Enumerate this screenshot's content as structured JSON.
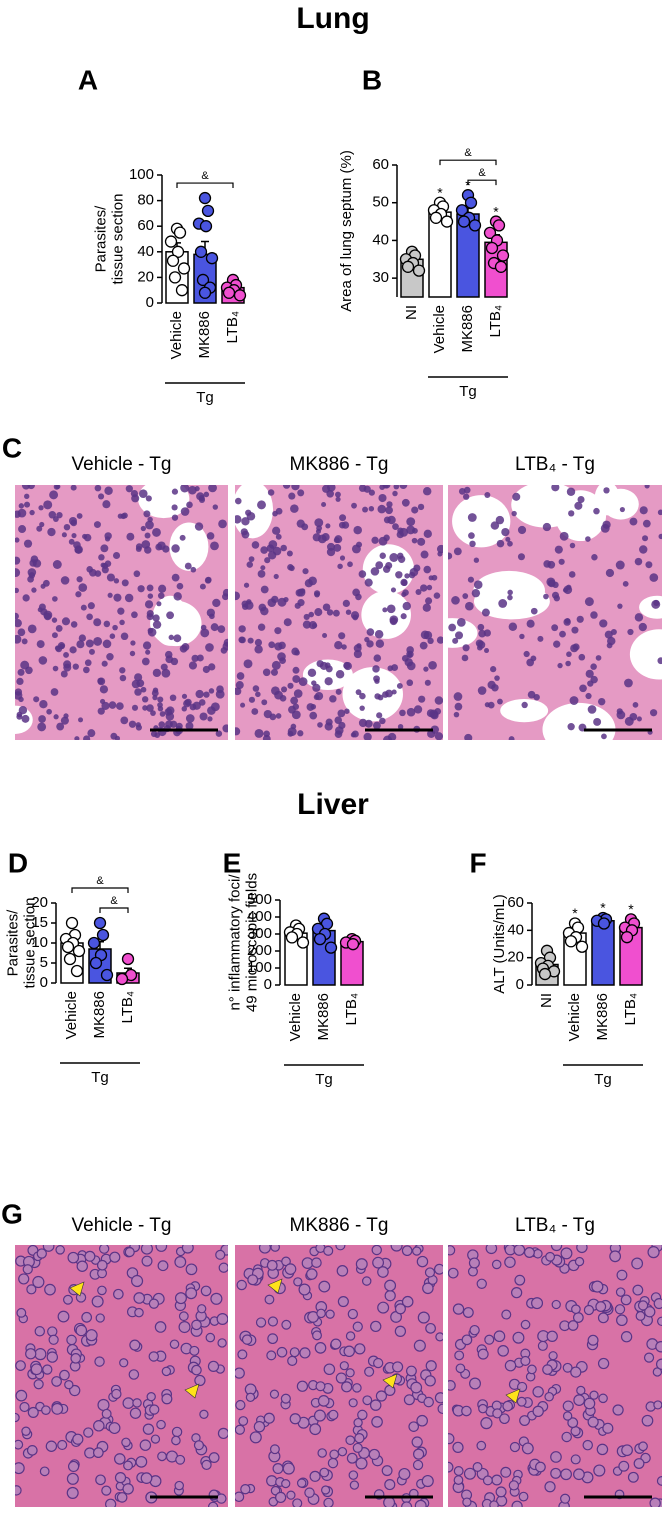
{
  "sections": [
    "Lung",
    "Liver"
  ],
  "chart_data": [
    {
      "panel": "A",
      "type": "bar",
      "ylabel": [
        "Parasites/",
        "tissue section"
      ],
      "categories": [
        "Vehicle",
        "MK886",
        "LTB₄"
      ],
      "group_label": "Tg",
      "colors": [
        "#ffffff",
        "#4a55e0",
        "#f04fcf"
      ],
      "values": [
        40,
        38,
        12
      ],
      "errors": [
        7,
        10,
        2.5
      ],
      "points": [
        [
          58,
          55,
          48,
          40,
          33,
          27,
          20,
          10
        ],
        [
          82,
          72,
          62,
          60,
          40,
          35,
          18,
          12,
          8
        ],
        [
          18,
          14,
          12,
          10,
          8,
          6
        ]
      ],
      "brackets": [
        {
          "label": "&",
          "between": [
            "Vehicle",
            "LTB₄"
          ]
        }
      ],
      "ylim": [
        0,
        100
      ],
      "yticks": [
        0,
        20,
        40,
        60,
        80,
        100
      ]
    },
    {
      "panel": "B",
      "type": "bar",
      "ylabel": [
        "Area of lung septum (%)"
      ],
      "categories": [
        "NI",
        "Vehicle",
        "MK886",
        "LTB₄"
      ],
      "group_label": "Tg",
      "colors": [
        "#c8c8c8",
        "#ffffff",
        "#4a55e0",
        "#f04fcf"
      ],
      "values": [
        35,
        47.5,
        47,
        39.5
      ],
      "errors": [
        1,
        1,
        1.5,
        2
      ],
      "points": [
        [
          37,
          36,
          35,
          34,
          33,
          32
        ],
        [
          50,
          49,
          48,
          47,
          46,
          45
        ],
        [
          52,
          50,
          48,
          46,
          45,
          44
        ],
        [
          45,
          44,
          42,
          40,
          38,
          36,
          34,
          33
        ]
      ],
      "marks": [
        null,
        "*",
        "*",
        "*"
      ],
      "brackets": [
        {
          "label": "&",
          "between": [
            "Vehicle",
            "LTB₄"
          ]
        },
        {
          "label": "&",
          "between": [
            "MK886",
            "LTB₄"
          ]
        }
      ],
      "ylim": [
        25,
        60
      ],
      "yticks": [
        30,
        40,
        50,
        60
      ]
    },
    {
      "panel": "D",
      "type": "bar",
      "ylabel": [
        "Parasites/",
        "tissue section"
      ],
      "categories": [
        "Vehicle",
        "MK886",
        "LTB₄"
      ],
      "group_label": "Tg",
      "colors": [
        "#ffffff",
        "#4a55e0",
        "#f04fcf"
      ],
      "values": [
        10,
        8.5,
        2.5
      ],
      "errors": [
        1.2,
        1.8,
        1.2
      ],
      "points": [
        [
          15,
          12,
          11,
          10,
          9,
          8,
          6,
          3
        ],
        [
          15,
          12,
          10,
          7,
          5,
          2
        ],
        [
          6,
          2,
          1
        ]
      ],
      "brackets": [
        {
          "label": "&",
          "between": [
            "Vehicle",
            "LTB₄"
          ]
        },
        {
          "label": "&",
          "between": [
            "MK886",
            "LTB₄"
          ]
        }
      ],
      "ylim": [
        0,
        20
      ],
      "yticks": [
        0,
        5,
        10,
        15,
        20
      ]
    },
    {
      "panel": "E",
      "type": "bar",
      "ylabel": [
        "n° inflammatory foci/",
        "49 microscopic fields"
      ],
      "categories": [
        "Vehicle",
        "MK886",
        "LTB₄"
      ],
      "group_label": "Tg",
      "colors": [
        "#ffffff",
        "#4a55e0",
        "#f04fcf"
      ],
      "values": [
        305,
        320,
        255
      ],
      "errors": [
        15,
        30,
        15
      ],
      "points": [
        [
          350,
          330,
          310,
          300,
          280,
          250
        ],
        [
          390,
          360,
          330,
          300,
          270,
          220
        ],
        [
          270,
          260,
          250,
          240
        ]
      ],
      "ylim": [
        0,
        500
      ],
      "yticks": [
        0,
        100,
        200,
        300,
        400,
        500
      ]
    },
    {
      "panel": "F",
      "type": "bar",
      "ylabel": [
        "ALT (Units/mL)"
      ],
      "categories": [
        "NI",
        "Vehicle",
        "MK886",
        "LTB₄"
      ],
      "group_label": "Tg",
      "colors": [
        "#c8c8c8",
        "#ffffff",
        "#4a55e0",
        "#f04fcf"
      ],
      "values": [
        15,
        38,
        47,
        42
      ],
      "errors": [
        2.5,
        3,
        1.5,
        3
      ],
      "points": [
        [
          25,
          20,
          16,
          14,
          12,
          10,
          8
        ],
        [
          45,
          42,
          38,
          35,
          32,
          28
        ],
        [
          49,
          48,
          47,
          45
        ],
        [
          48,
          45,
          42,
          40,
          35
        ]
      ],
      "marks": [
        null,
        "*",
        "*",
        "*"
      ],
      "ylim": [
        0,
        60
      ],
      "yticks": [
        0,
        20,
        40,
        60
      ]
    }
  ],
  "images": [
    {
      "panel": "C",
      "kind": "lung",
      "labels": [
        "Vehicle - Tg",
        "MK886 - Tg",
        "LTB₄ - Tg"
      ]
    },
    {
      "panel": "G",
      "kind": "liver",
      "labels": [
        "Vehicle - Tg",
        "MK886 - Tg",
        "LTB₄ - Tg"
      ]
    }
  ]
}
